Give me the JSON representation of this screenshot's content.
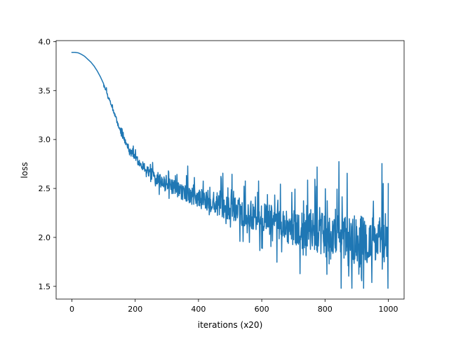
{
  "chart_data": {
    "type": "line",
    "title": "",
    "xlabel": "iterations (x20)",
    "ylabel": "loss",
    "xlim": [
      -50,
      1050
    ],
    "ylim": [
      1.37,
      4.01
    ],
    "xticks": [
      0,
      200,
      400,
      600,
      800,
      1000
    ],
    "yticks": [
      1.5,
      2.0,
      2.5,
      3.0,
      3.5,
      4.0
    ],
    "xtick_labels": [
      "0",
      "200",
      "400",
      "600",
      "800",
      "1000"
    ],
    "ytick_labels": [
      "1.5",
      "2.0",
      "2.5",
      "3.0",
      "3.5",
      "4.0"
    ],
    "grid": false,
    "legend": "none",
    "series_color": "#1f77b4",
    "series": [
      {
        "name": "",
        "description_of_shape": "",
        "x_start": 0,
        "x_end": 1000,
        "points": [
          [
            0,
            3.89
          ],
          [
            10,
            3.89
          ],
          [
            20,
            3.885
          ],
          [
            30,
            3.87
          ],
          [
            40,
            3.85
          ],
          [
            50,
            3.82
          ],
          [
            60,
            3.79
          ],
          [
            70,
            3.75
          ],
          [
            80,
            3.7
          ],
          [
            90,
            3.64
          ],
          [
            100,
            3.57
          ],
          [
            110,
            3.48
          ],
          [
            120,
            3.39
          ],
          [
            130,
            3.3
          ],
          [
            140,
            3.21
          ],
          [
            150,
            3.11
          ],
          [
            160,
            3.03
          ],
          [
            170,
            2.97
          ],
          [
            180,
            2.91
          ],
          [
            190,
            2.86
          ],
          [
            200,
            2.81
          ],
          [
            220,
            2.74
          ],
          [
            240,
            2.68
          ],
          [
            260,
            2.62
          ],
          [
            280,
            2.58
          ],
          [
            300,
            2.54
          ],
          [
            320,
            2.51
          ],
          [
            340,
            2.48
          ],
          [
            360,
            2.45
          ],
          [
            380,
            2.42
          ],
          [
            400,
            2.4
          ],
          [
            420,
            2.38
          ],
          [
            440,
            2.36
          ],
          [
            460,
            2.34
          ],
          [
            480,
            2.32
          ],
          [
            500,
            2.3
          ],
          [
            520,
            2.28
          ],
          [
            540,
            2.26
          ],
          [
            560,
            2.24
          ],
          [
            580,
            2.22
          ],
          [
            600,
            2.2
          ],
          [
            620,
            2.18
          ],
          [
            640,
            2.16
          ],
          [
            660,
            2.14
          ],
          [
            680,
            2.12
          ],
          [
            700,
            2.1
          ],
          [
            720,
            2.08
          ],
          [
            740,
            2.07
          ],
          [
            760,
            2.05
          ],
          [
            780,
            2.04
          ],
          [
            800,
            2.03
          ],
          [
            820,
            2.02
          ],
          [
            840,
            2.01
          ],
          [
            860,
            2.0
          ],
          [
            880,
            1.99
          ],
          [
            900,
            1.98
          ],
          [
            920,
            1.97
          ],
          [
            940,
            1.96
          ],
          [
            960,
            1.95
          ],
          [
            980,
            1.94
          ],
          [
            1000,
            1.93
          ]
        ],
        "noise": {
          "start_x": 100,
          "min_amplitude": 0.02,
          "max_amplitude": 0.5
        }
      }
    ]
  }
}
